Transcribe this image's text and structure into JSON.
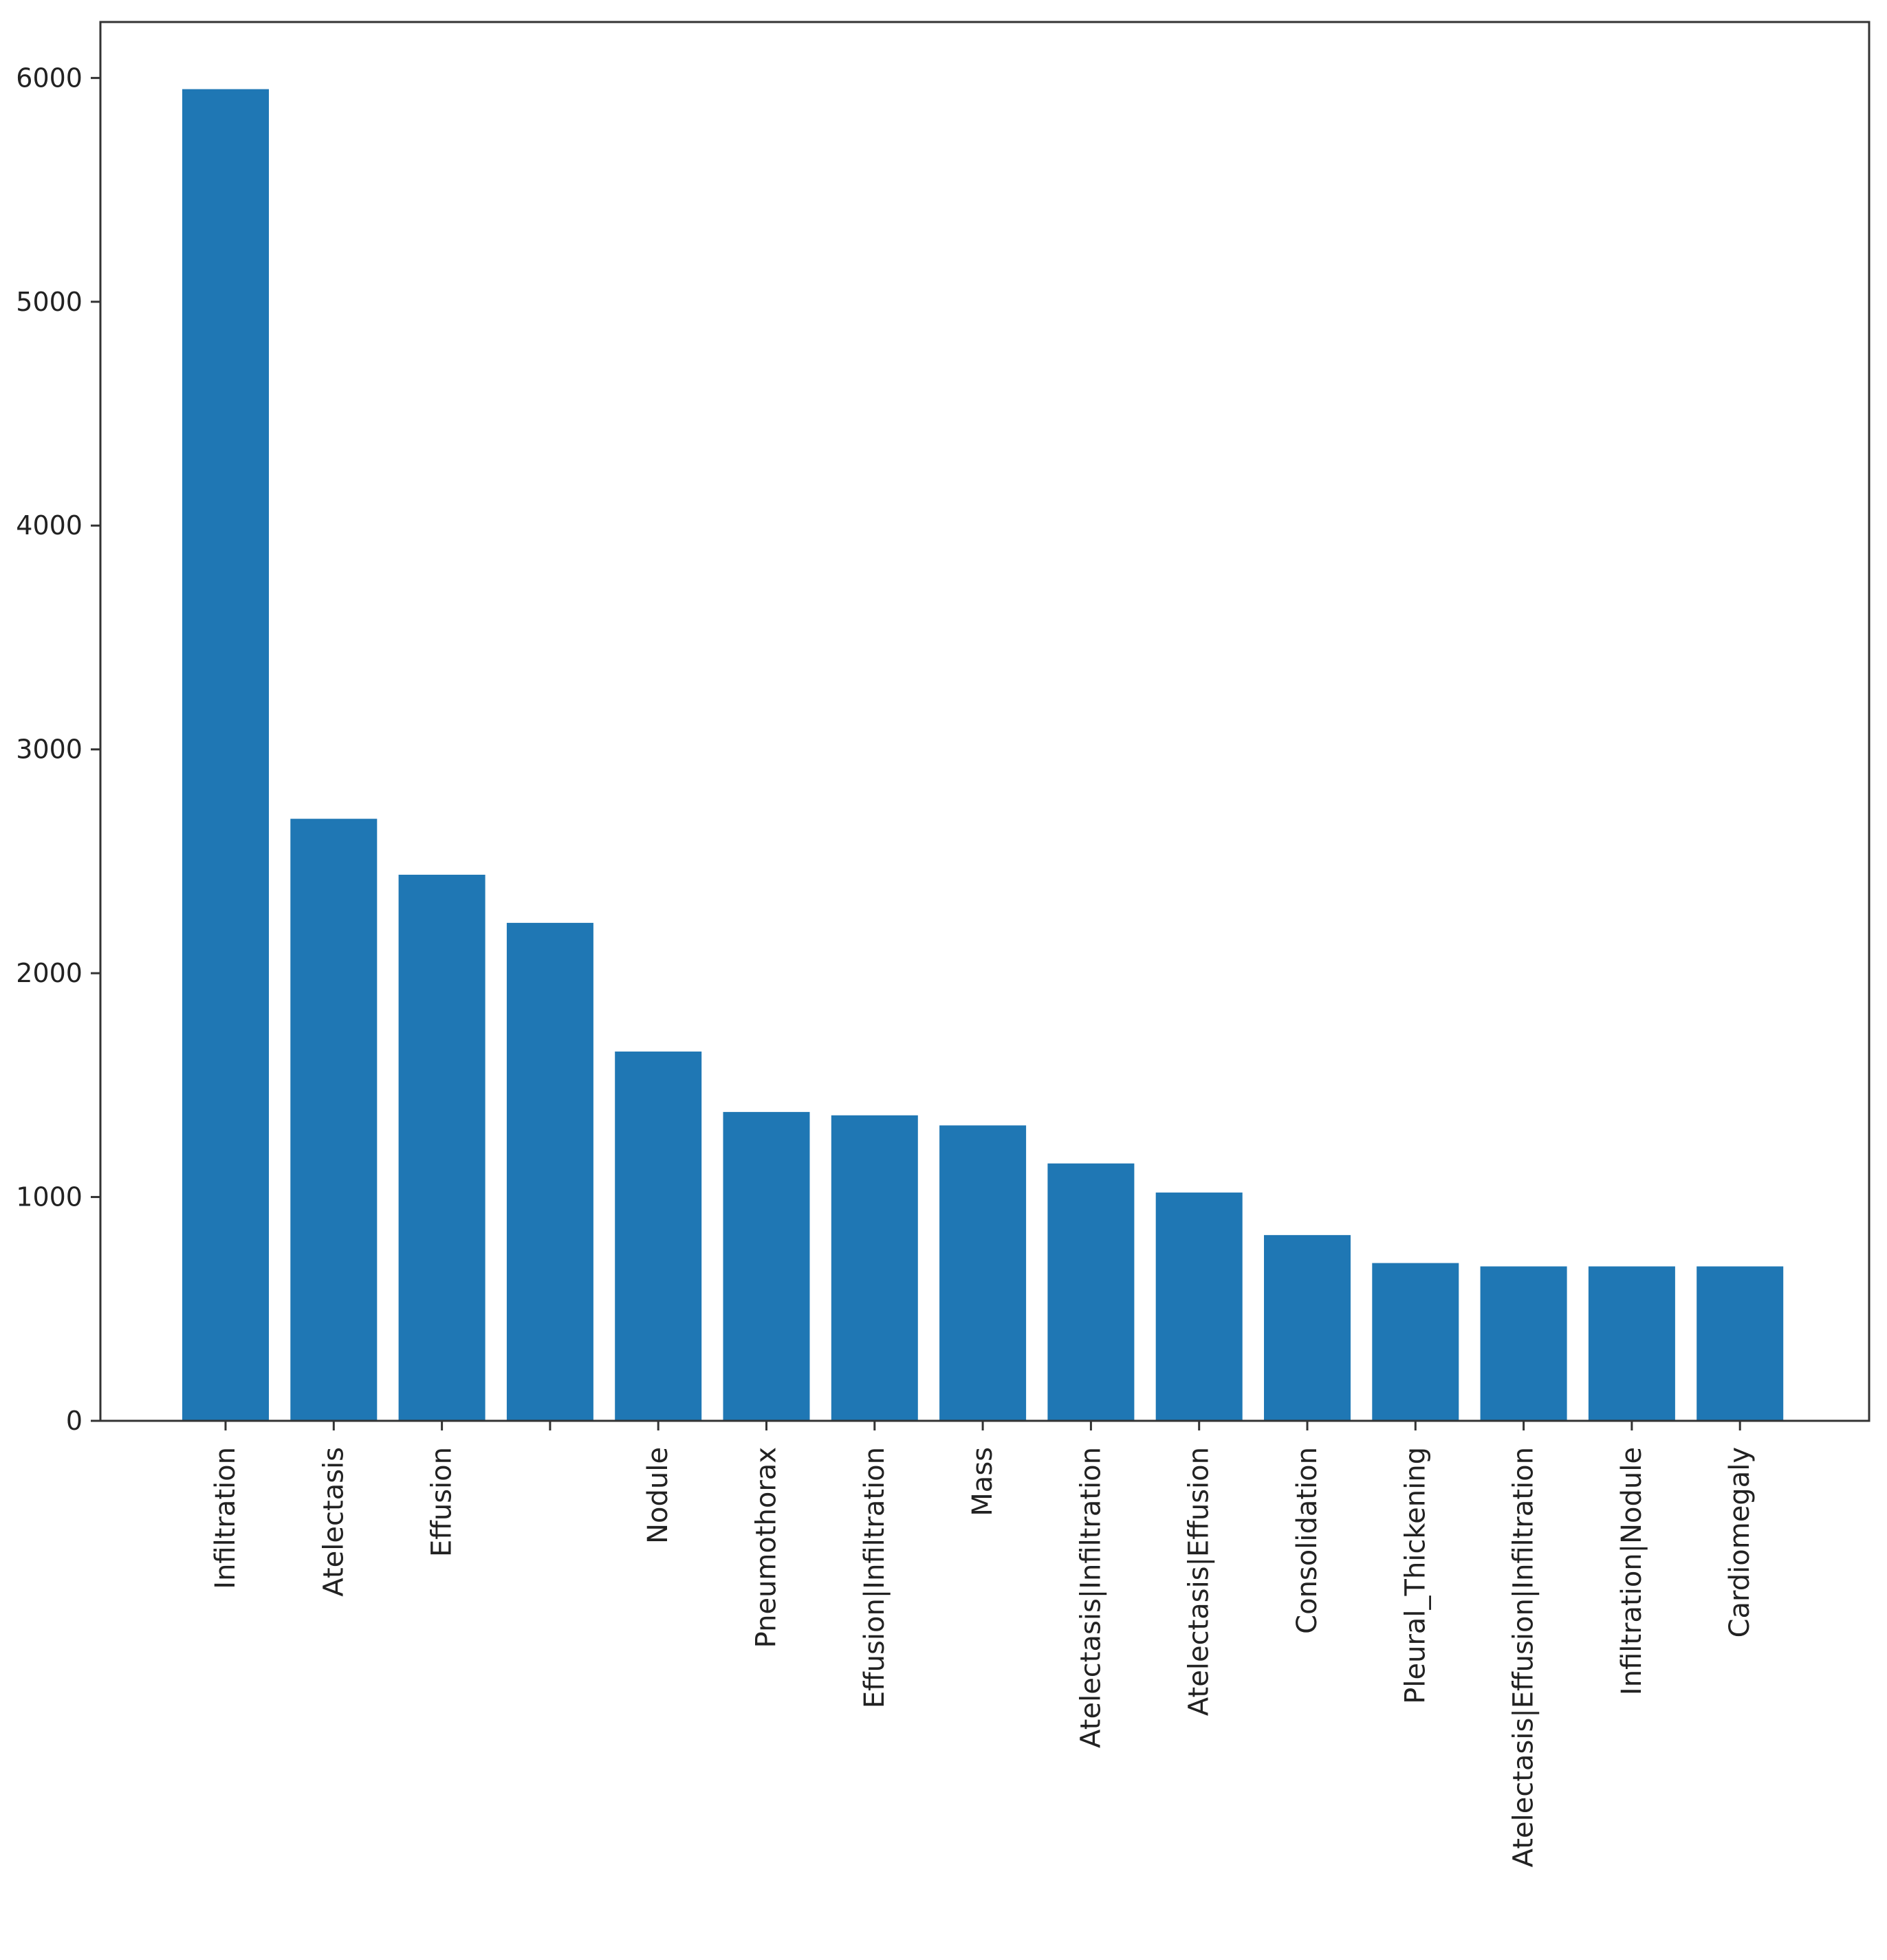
{
  "chart_data": {
    "type": "bar",
    "categories": [
      "Infiltration",
      "Atelectasis",
      "Effusion",
      "",
      "Nodule",
      "Pneumothorax",
      "Effusion|Infiltration",
      "Mass",
      "Atelectasis|Infiltration",
      "Atelectasis|Effusion",
      "Consolidation",
      "Pleural_Thickening",
      "Atelectasis|Effusion|Infiltration",
      "Infiltration|Nodule",
      "Cardiomegaly"
    ],
    "values": [
      5950,
      2690,
      2440,
      2225,
      1650,
      1380,
      1365,
      1320,
      1150,
      1020,
      830,
      705,
      690,
      690,
      690
    ],
    "ylim": [
      0,
      6250
    ],
    "yticks": [
      0,
      1000,
      2000,
      3000,
      4000,
      5000,
      6000
    ],
    "title": "",
    "xlabel": "",
    "ylabel": "",
    "grid": false,
    "bar_color": "#1f77b4",
    "axis_color": "#333333",
    "text_color": "#222222"
  }
}
